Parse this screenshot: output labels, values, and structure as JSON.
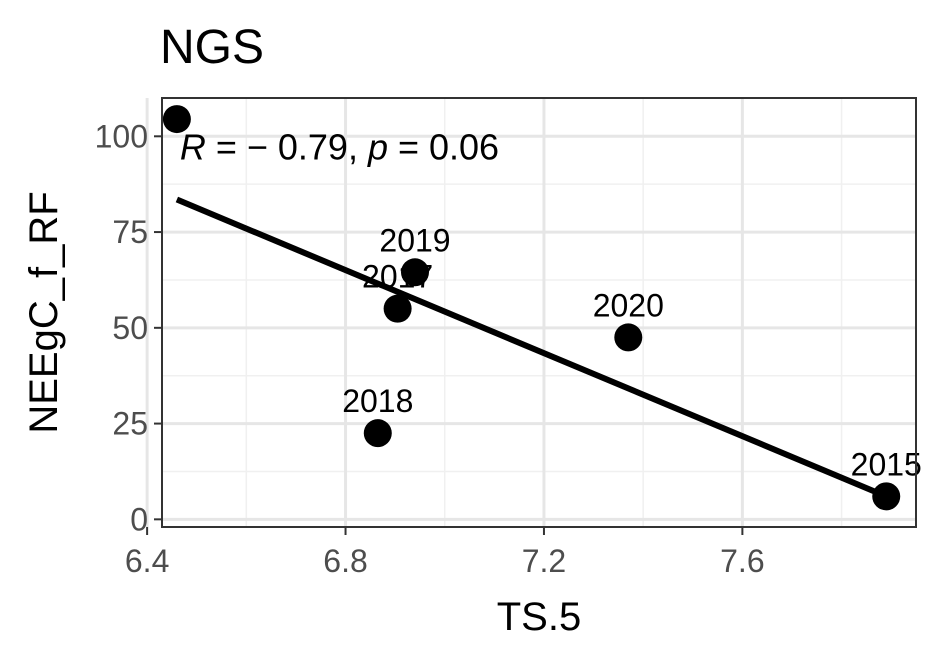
{
  "chart_data": {
    "type": "scatter",
    "title": "NGS",
    "xlabel": "TS.5",
    "ylabel": "NEEgC_f_RF",
    "xlim": [
      6.43,
      7.95
    ],
    "ylim": [
      -2,
      110
    ],
    "x_ticks": [
      6.4,
      6.8,
      7.2,
      7.6
    ],
    "x_tick_labels": [
      "6.4",
      "6.8",
      "7.2",
      "7.6"
    ],
    "y_ticks": [
      0,
      25,
      50,
      75,
      100
    ],
    "y_tick_labels": [
      "0",
      "25",
      "50",
      "75",
      "100"
    ],
    "grid": true,
    "points": [
      {
        "x": 6.46,
        "y": 104.5,
        "label": ""
      },
      {
        "x": 6.865,
        "y": 22.5,
        "label": "2018"
      },
      {
        "x": 6.905,
        "y": 55,
        "label": "2017"
      },
      {
        "x": 6.94,
        "y": 64.5,
        "label": "2019"
      },
      {
        "x": 7.37,
        "y": 47.5,
        "label": "2020"
      },
      {
        "x": 7.89,
        "y": 6,
        "label": "2015"
      }
    ],
    "regression_line": {
      "x": [
        6.46,
        7.89
      ],
      "y": [
        83.5,
        6
      ]
    },
    "stat_annotation": {
      "r_symbol": "R",
      "r_text": " = − 0.79, ",
      "p_symbol": "p",
      "p_text": " = 0.06",
      "x": 6.47,
      "y": 95
    }
  }
}
